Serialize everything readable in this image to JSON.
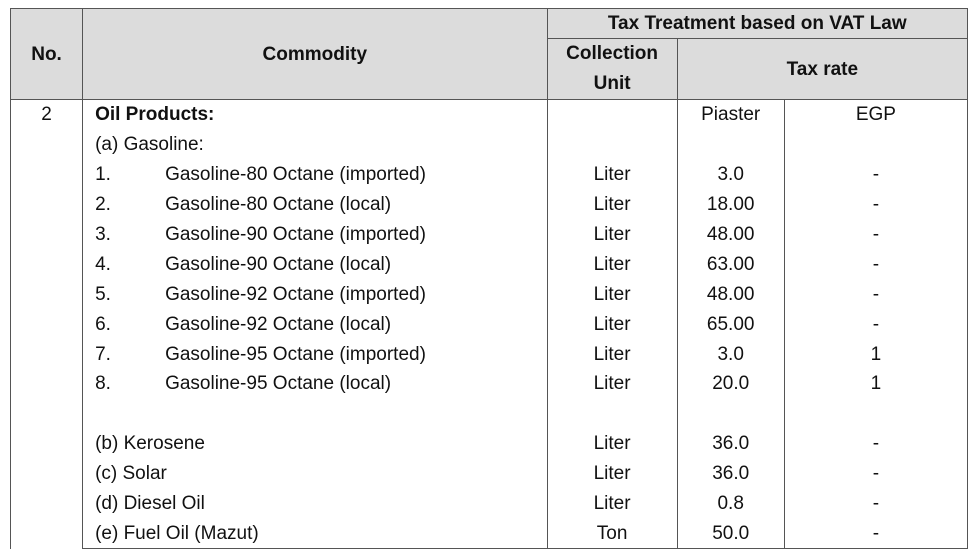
{
  "header": {
    "no": "No.",
    "commodity": "Commodity",
    "group": "Tax Treatment based on VAT Law",
    "collection_unit_line1": "Collection",
    "collection_unit_line2": "Unit",
    "tax_rate": "Tax rate"
  },
  "section": {
    "no": "2",
    "title": "Oil Products:",
    "piaster_label": "Piaster",
    "egp_label": "EGP"
  },
  "rows": [
    {
      "text": "(a)  Gasoline:",
      "unit": "",
      "piaster": "",
      "egp": ""
    },
    {
      "num": "1.",
      "text": "Gasoline-80 Octane (imported)",
      "unit": "Liter",
      "piaster": "3.0",
      "egp": "-"
    },
    {
      "num": "2.",
      "text": "Gasoline-80 Octane (local)",
      "unit": "Liter",
      "piaster": "18.00",
      "egp": "-"
    },
    {
      "num": "3.",
      "text": "Gasoline-90 Octane (imported)",
      "unit": "Liter",
      "piaster": "48.00",
      "egp": "-"
    },
    {
      "num": "4.",
      "text": "Gasoline-90 Octane (local)",
      "unit": "Liter",
      "piaster": "63.00",
      "egp": "-"
    },
    {
      "num": "5.",
      "text": "Gasoline-92 Octane (imported)",
      "unit": "Liter",
      "piaster": "48.00",
      "egp": "-"
    },
    {
      "num": "6.",
      "text": "Gasoline-92 Octane (local)",
      "unit": "Liter",
      "piaster": "65.00",
      "egp": "-"
    },
    {
      "num": "7.",
      "text": "Gasoline-95 Octane (imported)",
      "unit": "Liter",
      "piaster": "3.0",
      "egp": "1"
    },
    {
      "num": "8.",
      "text": "Gasoline-95 Octane (local)",
      "unit": "Liter",
      "piaster": "20.0",
      "egp": "1"
    },
    {
      "text": "",
      "unit": "",
      "piaster": "",
      "egp": ""
    },
    {
      "text": "(b)  Kerosene",
      "unit": "Liter",
      "piaster": "36.0",
      "egp": "-"
    },
    {
      "text": "(c)  Solar",
      "unit": "Liter",
      "piaster": "36.0",
      "egp": "-"
    },
    {
      "text": "(d)  Diesel Oil",
      "unit": "Liter",
      "piaster": "0.8",
      "egp": "-"
    },
    {
      "text": "(e)  Fuel Oil (Mazut)",
      "unit": "Ton",
      "piaster": "50.0",
      "egp": "-"
    }
  ]
}
